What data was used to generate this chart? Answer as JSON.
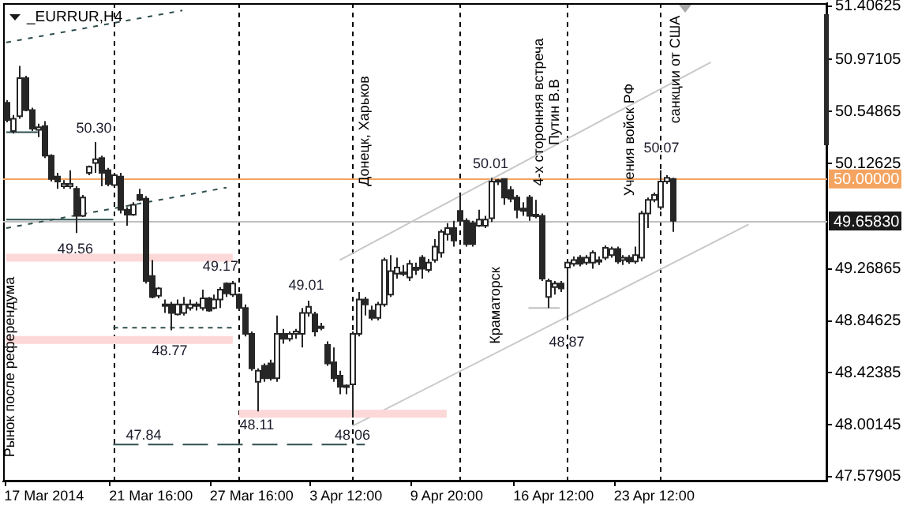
{
  "chart_data": {
    "type": "candlestick",
    "title": "_EURRUR,H4",
    "color": "#262626",
    "categories": [
      null,
      null,
      null,
      null,
      null,
      null,
      "17 Mar 2014",
      null,
      null,
      null,
      null,
      null,
      null,
      null,
      null,
      null,
      null,
      null,
      null,
      null,
      null,
      null,
      null,
      "21 Mar 16:00",
      null,
      null,
      null,
      null,
      null,
      null,
      null,
      null,
      null,
      null,
      null,
      null,
      null,
      null,
      null,
      "27 Mar 16:00",
      null,
      null,
      null,
      null,
      null,
      null,
      null,
      null,
      null,
      null,
      null,
      null,
      null,
      null,
      "3 Apr 12:00",
      null,
      null,
      null,
      null,
      null,
      null,
      null,
      null,
      null,
      null,
      null,
      null,
      null,
      null,
      null,
      "9 Apr 20:00",
      null,
      null,
      null,
      null,
      null,
      null,
      null,
      null,
      null,
      null,
      null,
      null,
      null,
      null,
      null,
      null,
      "16 Apr 12:00",
      null,
      null,
      null,
      null,
      null,
      null,
      null,
      null,
      null,
      null,
      null,
      null,
      null,
      null,
      null,
      "23 Apr 12:00",
      null,
      null,
      null,
      null,
      null,
      null,
      null,
      null,
      null,
      null,
      null,
      null,
      null,
      null,
      null,
      null,
      null,
      null,
      null,
      null,
      null,
      null,
      null,
      null,
      null,
      null,
      null
    ],
    "ohlc": [
      [
        50.62,
        50.64,
        50.46,
        50.48
      ],
      [
        50.39,
        50.52,
        50.37,
        50.49
      ],
      [
        50.51,
        50.92,
        50.49,
        50.82
      ],
      [
        50.82,
        50.84,
        50.55,
        50.56
      ],
      [
        50.56,
        50.58,
        50.39,
        50.41
      ],
      [
        50.4,
        50.45,
        50.34,
        50.42
      ],
      [
        50.43,
        50.47,
        50.17,
        50.19
      ],
      [
        50.19,
        50.2,
        49.98,
        50.0
      ],
      [
        50.02,
        50.05,
        49.92,
        49.98
      ],
      [
        49.94,
        49.99,
        49.92,
        49.96
      ],
      [
        49.94,
        50.07,
        49.92,
        49.96
      ],
      [
        49.92,
        49.94,
        49.56,
        49.7
      ],
      [
        49.7,
        49.87,
        49.69,
        49.85
      ],
      [
        50.05,
        50.11,
        50.03,
        50.1
      ],
      [
        50.13,
        50.3,
        50.05,
        50.16
      ],
      [
        50.17,
        50.19,
        49.94,
        50.05
      ],
      [
        50.07,
        50.09,
        49.94,
        49.96
      ],
      [
        49.95,
        50.05,
        49.94,
        50.03
      ],
      [
        50.02,
        50.05,
        49.72,
        49.75
      ],
      [
        49.75,
        49.77,
        49.62,
        49.71
      ],
      [
        49.71,
        49.81,
        49.7,
        49.79
      ],
      [
        49.87,
        49.92,
        49.82,
        49.83
      ],
      [
        49.84,
        49.86,
        49.15,
        49.17
      ],
      [
        49.21,
        49.34,
        49.03,
        49.04
      ],
      [
        49.05,
        49.12,
        49.03,
        49.11
      ],
      [
        48.98,
        49.02,
        48.91,
        48.97
      ],
      [
        48.98,
        49.0,
        48.77,
        48.91
      ],
      [
        48.9,
        49.02,
        48.89,
        48.98
      ],
      [
        48.91,
        49.04,
        48.89,
        48.98
      ],
      [
        48.95,
        49.02,
        48.93,
        48.98
      ],
      [
        48.98,
        49.0,
        48.93,
        48.97
      ],
      [
        48.95,
        49.1,
        48.93,
        49.03
      ],
      [
        49.03,
        49.04,
        48.92,
        48.93
      ],
      [
        48.95,
        49.06,
        48.94,
        49.02
      ],
      [
        49.02,
        49.12,
        48.95,
        49.1
      ],
      [
        49.15,
        49.16,
        49.04,
        49.07
      ],
      [
        49.06,
        49.17,
        49.04,
        49.15
      ],
      [
        49.06,
        49.07,
        48.93,
        48.95
      ],
      [
        48.95,
        48.98,
        48.72,
        48.74
      ],
      [
        48.74,
        48.76,
        48.44,
        48.46
      ],
      [
        48.35,
        48.46,
        48.11,
        48.44
      ],
      [
        48.48,
        48.5,
        48.35,
        48.38
      ],
      [
        48.5,
        48.53,
        48.36,
        48.38
      ],
      [
        48.38,
        48.89,
        48.35,
        48.74
      ],
      [
        48.74,
        48.78,
        48.66,
        48.7
      ],
      [
        48.7,
        48.76,
        48.68,
        48.74
      ],
      [
        48.74,
        48.78,
        48.7,
        48.76
      ],
      [
        48.74,
        48.95,
        48.63,
        48.91
      ],
      [
        48.91,
        49.01,
        48.88,
        48.96
      ],
      [
        48.9,
        48.92,
        48.72,
        48.76
      ],
      [
        48.8,
        48.83,
        48.77,
        48.79
      ],
      [
        48.65,
        48.68,
        48.48,
        48.5
      ],
      [
        48.51,
        48.63,
        48.35,
        48.38
      ],
      [
        48.4,
        48.44,
        48.25,
        48.31
      ],
      [
        48.32,
        48.33,
        48.25,
        48.31
      ],
      [
        48.33,
        48.76,
        48.06,
        48.74
      ],
      [
        48.74,
        49.08,
        48.72,
        49.02
      ],
      [
        49.02,
        49.04,
        48.89,
        48.98
      ],
      [
        48.93,
        48.97,
        48.85,
        48.87
      ],
      [
        48.87,
        49.0,
        48.85,
        48.98
      ],
      [
        48.98,
        49.36,
        48.96,
        49.34
      ],
      [
        49.06,
        49.38,
        49.04,
        49.25
      ],
      [
        49.23,
        49.36,
        49.19,
        49.28
      ],
      [
        49.24,
        49.3,
        49.21,
        49.24
      ],
      [
        49.2,
        49.34,
        49.17,
        49.31
      ],
      [
        49.28,
        49.32,
        49.22,
        49.26
      ],
      [
        49.36,
        49.38,
        49.19,
        49.27
      ],
      [
        49.26,
        49.35,
        49.24,
        49.32
      ],
      [
        49.34,
        49.51,
        49.32,
        49.45
      ],
      [
        49.4,
        49.59,
        49.36,
        49.57
      ],
      [
        49.55,
        49.64,
        49.5,
        49.6
      ],
      [
        49.6,
        49.66,
        49.45,
        49.5
      ],
      [
        49.74,
        49.87,
        49.64,
        49.66
      ],
      [
        49.66,
        49.68,
        49.45,
        49.47
      ],
      [
        49.64,
        49.66,
        49.45,
        49.47
      ],
      [
        49.62,
        49.75,
        49.61,
        49.67
      ],
      [
        49.62,
        49.7,
        49.6,
        49.67
      ],
      [
        49.68,
        50.01,
        49.65,
        49.98
      ],
      [
        49.99,
        50.0,
        49.95,
        49.98
      ],
      [
        50.0,
        50.0,
        49.79,
        49.85
      ],
      [
        49.91,
        49.94,
        49.81,
        49.84
      ],
      [
        49.85,
        49.87,
        49.68,
        49.75
      ],
      [
        49.76,
        49.81,
        49.7,
        49.74
      ],
      [
        49.85,
        49.87,
        49.66,
        49.7
      ],
      [
        49.71,
        49.83,
        49.68,
        49.7
      ],
      [
        49.7,
        49.72,
        49.17,
        49.19
      ],
      [
        49.04,
        49.19,
        48.95,
        49.17
      ],
      [
        49.12,
        49.17,
        49.06,
        49.15
      ],
      [
        49.15,
        49.17,
        49.08,
        49.11
      ],
      [
        49.28,
        49.34,
        48.87,
        49.32
      ],
      [
        49.31,
        49.37,
        49.29,
        49.34
      ],
      [
        49.36,
        49.38,
        49.29,
        49.31
      ],
      [
        49.32,
        49.38,
        49.3,
        49.36
      ],
      [
        49.32,
        49.42,
        49.27,
        49.4
      ],
      [
        49.34,
        49.37,
        49.3,
        49.33
      ],
      [
        49.36,
        49.46,
        49.34,
        49.44
      ],
      [
        49.38,
        49.45,
        49.36,
        49.43
      ],
      [
        49.43,
        49.45,
        49.31,
        49.33
      ],
      [
        49.34,
        49.38,
        49.3,
        49.36
      ],
      [
        49.36,
        49.38,
        49.31,
        49.33
      ],
      [
        49.33,
        49.45,
        49.31,
        49.38
      ],
      [
        49.36,
        49.74,
        49.33,
        49.72
      ],
      [
        49.72,
        49.85,
        49.6,
        49.83
      ],
      [
        49.83,
        49.89,
        49.81,
        49.87
      ],
      [
        49.77,
        50.07,
        49.75,
        49.98
      ],
      [
        49.98,
        50.03,
        49.96,
        50.01
      ],
      [
        50.0,
        50.01,
        49.57,
        49.66
      ],
      null,
      null,
      null,
      null,
      null,
      null,
      null,
      null,
      null,
      null,
      null,
      null,
      null,
      null,
      null,
      null,
      null,
      null,
      null,
      null,
      null,
      null,
      null,
      null
    ],
    "ylim": [
      47.54,
      51.43
    ],
    "yticks": [
      47.57905,
      48.00145,
      48.42385,
      48.84625,
      49.26865,
      50.12625,
      50.54865,
      50.97105,
      51.40625
    ],
    "series": [
      {
        "type": "line",
        "color": "#2f4f4f",
        "line_style": "dashed",
        "values": [
          51.11,
          null,
          null,
          null,
          null,
          null,
          null,
          null,
          null,
          null,
          null,
          null,
          null,
          null,
          null,
          null,
          null,
          null,
          null,
          null,
          null,
          null,
          null,
          null,
          null,
          null,
          null,
          null,
          51.37,
          null,
          null,
          null,
          null,
          null,
          null,
          null,
          null,
          null,
          null,
          null,
          null,
          null,
          null,
          null,
          null,
          null,
          null,
          null,
          null,
          null,
          null,
          null,
          null,
          null,
          null,
          null,
          null,
          null,
          null,
          null,
          null,
          null,
          null,
          null,
          null,
          null,
          null,
          null,
          null,
          null,
          null,
          null,
          null,
          null,
          null,
          null,
          null,
          null,
          null,
          null,
          null,
          null,
          null,
          null,
          null,
          null,
          null,
          null,
          null,
          null,
          null,
          null,
          null,
          null,
          null,
          null,
          null,
          null,
          null,
          null,
          null,
          null,
          null,
          null,
          null,
          null,
          null,
          null,
          null,
          null,
          null,
          null,
          null,
          null,
          null,
          null,
          null,
          null,
          null,
          null,
          null,
          null,
          null,
          null,
          null,
          null,
          null,
          null,
          null,
          null,
          null
        ]
      },
      {
        "type": "line",
        "color": "#2f4f4f",
        "line_style": "dashed",
        "values": [
          49.6,
          null,
          null,
          null,
          null,
          null,
          null,
          null,
          null,
          null,
          null,
          null,
          null,
          null,
          null,
          null,
          null,
          null,
          null,
          null,
          null,
          null,
          null,
          null,
          null,
          null,
          null,
          null,
          null,
          null,
          null,
          null,
          null,
          null,
          null,
          49.93,
          null,
          null,
          null,
          null,
          null,
          null,
          null,
          null,
          null,
          null,
          null,
          null,
          null,
          null,
          null,
          null,
          null,
          null,
          null,
          null,
          null,
          null,
          null,
          null,
          null,
          null,
          null,
          null,
          null,
          null,
          null,
          null,
          null,
          null,
          null,
          null,
          null,
          null,
          null,
          null,
          null,
          null,
          null,
          null,
          null,
          null,
          null,
          null,
          null,
          null,
          null,
          null,
          null,
          null,
          null,
          null,
          null,
          null,
          null,
          null,
          null,
          null,
          null,
          null,
          null,
          null,
          null,
          null,
          null,
          null,
          null,
          null,
          null,
          null,
          null,
          null,
          null,
          null,
          null,
          null,
          null,
          null,
          null,
          null,
          null,
          null,
          null,
          null,
          null,
          null,
          null,
          null,
          null,
          null,
          null
        ]
      },
      {
        "type": "line",
        "color": "#2f4f4f",
        "line_style": "solid",
        "values": [
          50.38,
          null,
          null,
          null,
          null,
          50.38,
          null,
          null,
          null,
          null,
          null,
          null,
          null,
          null,
          null,
          null,
          null,
          null,
          null,
          null,
          null,
          null,
          null,
          null,
          null,
          null,
          null,
          null,
          null,
          null,
          null,
          null,
          null,
          null,
          null,
          null,
          null,
          null,
          null,
          null,
          null,
          null,
          null,
          null,
          null,
          null,
          null,
          null,
          null,
          null,
          null,
          null,
          null,
          null,
          null,
          null,
          null,
          null,
          null,
          null,
          null,
          null,
          null,
          null,
          null,
          null,
          null,
          null,
          null,
          null,
          null,
          null,
          null,
          null,
          null,
          null,
          null,
          null,
          null,
          null,
          null,
          null,
          null,
          null,
          null,
          null,
          null,
          null,
          null,
          null,
          null,
          null,
          null,
          null,
          null,
          null,
          null,
          null,
          null,
          null,
          null,
          null,
          null,
          null,
          null,
          null,
          null,
          null,
          null,
          null,
          null,
          null,
          null,
          null,
          null,
          null,
          null,
          null,
          null,
          null,
          null,
          null,
          null,
          null,
          null,
          null,
          null,
          null,
          null,
          null,
          null
        ]
      },
      {
        "type": "line",
        "color": "#2f4f4f",
        "line_style": "solid",
        "values": [
          49.67,
          null,
          null,
          null,
          null,
          null,
          null,
          null,
          null,
          null,
          null,
          null,
          null,
          null,
          null,
          null,
          null,
          49.67,
          null,
          null,
          null,
          null,
          null,
          null,
          null,
          null,
          null,
          null,
          null,
          null,
          null,
          null,
          null,
          null,
          null,
          null,
          null,
          null,
          null,
          null,
          null,
          null,
          null,
          null,
          null,
          null,
          null,
          null,
          null,
          null,
          null,
          null,
          null,
          null,
          null,
          null,
          null,
          null,
          null,
          null,
          null,
          null,
          null,
          null,
          null,
          null,
          null,
          null,
          null,
          null,
          null,
          null,
          null,
          null,
          null,
          null,
          null,
          null,
          null,
          null,
          null,
          null,
          null,
          null,
          null,
          null,
          null,
          null,
          null,
          null,
          null,
          null,
          null,
          null,
          null,
          null,
          null,
          null,
          null,
          null,
          null,
          null,
          null,
          null,
          null,
          null,
          null,
          null,
          null,
          null,
          null,
          null,
          null,
          null,
          null,
          null,
          null,
          null,
          null,
          null,
          null,
          null,
          null,
          null,
          null,
          null,
          null,
          null,
          null,
          null,
          null
        ]
      },
      {
        "type": "line",
        "color": "#fdd8d8",
        "line_style": "solid",
        "values": [
          49.36,
          null,
          null,
          null,
          null,
          null,
          null,
          null,
          null,
          null,
          null,
          null,
          null,
          null,
          null,
          null,
          null,
          null,
          null,
          null,
          null,
          null,
          null,
          null,
          null,
          null,
          null,
          null,
          null,
          null,
          null,
          null,
          null,
          null,
          null,
          null,
          49.36,
          null,
          null,
          null,
          null,
          null,
          null,
          null,
          null,
          null,
          null,
          null,
          null,
          null,
          null,
          null,
          null,
          null,
          null,
          null,
          null,
          null,
          null,
          null,
          null,
          null,
          null,
          null,
          null,
          null,
          null,
          null,
          null,
          null,
          null,
          null,
          null,
          null,
          null,
          null,
          null,
          null,
          null,
          null,
          null,
          null,
          null,
          null,
          null,
          null,
          null,
          null,
          null,
          null,
          null,
          null,
          null,
          null,
          null,
          null,
          null,
          null,
          null,
          null,
          null,
          null,
          null,
          null,
          null,
          null,
          null,
          null,
          null,
          null,
          null,
          null,
          null,
          null,
          null,
          null,
          null,
          null,
          null,
          null,
          null,
          null,
          null,
          null,
          null,
          null,
          null,
          null,
          null,
          null,
          null
        ]
      },
      {
        "type": "line",
        "color": "#fdd8d8",
        "line_style": "solid",
        "values": [
          48.69,
          null,
          null,
          null,
          null,
          null,
          null,
          null,
          null,
          null,
          null,
          null,
          null,
          null,
          null,
          null,
          null,
          null,
          null,
          null,
          null,
          null,
          null,
          null,
          null,
          null,
          null,
          null,
          null,
          null,
          null,
          null,
          null,
          null,
          null,
          null,
          48.69,
          null,
          null,
          null,
          null,
          null,
          null,
          null,
          null,
          null,
          null,
          null,
          null,
          null,
          null,
          null,
          null,
          null,
          null,
          null,
          null,
          null,
          null,
          null,
          null,
          null,
          null,
          null,
          null,
          null,
          null,
          null,
          null,
          null,
          null,
          null,
          null,
          null,
          null,
          null,
          null,
          null,
          null,
          null,
          null,
          null,
          null,
          null,
          null,
          null,
          null,
          null,
          null,
          null,
          null,
          null,
          null,
          null,
          null,
          null,
          null,
          null,
          null,
          null,
          null,
          null,
          null,
          null,
          null,
          null,
          null,
          null,
          null,
          null,
          null,
          null,
          null,
          null,
          null,
          null,
          null,
          null,
          null,
          null,
          null,
          null,
          null,
          null,
          null,
          null,
          null,
          null,
          null,
          null,
          null
        ]
      },
      {
        "type": "line",
        "color": "#2f4f4f",
        "line_style": "dashed",
        "values": [
          null,
          null,
          null,
          null,
          null,
          null,
          null,
          null,
          null,
          null,
          null,
          null,
          null,
          null,
          null,
          null,
          null,
          48.79,
          null,
          null,
          null,
          null,
          null,
          null,
          null,
          null,
          null,
          null,
          null,
          null,
          null,
          null,
          null,
          null,
          null,
          null,
          48.79,
          null,
          null,
          null,
          null,
          null,
          null,
          null,
          null,
          null,
          null,
          null,
          null,
          null,
          null,
          null,
          null,
          null,
          null,
          null,
          null,
          null,
          null,
          null,
          null,
          null,
          null,
          null,
          null,
          null,
          null,
          null,
          null,
          null,
          null,
          null,
          null,
          null,
          null,
          null,
          null,
          null,
          null,
          null,
          null,
          null,
          null,
          null,
          null,
          null,
          null,
          null,
          null,
          null,
          null,
          null,
          null,
          null,
          null,
          null,
          null,
          null,
          null,
          null,
          null,
          null,
          null,
          null,
          null,
          null,
          null,
          null,
          null,
          null,
          null,
          null,
          null,
          null,
          null,
          null,
          null,
          null,
          null,
          null,
          null,
          null,
          null,
          null,
          null,
          null,
          null,
          null,
          null,
          null,
          null
        ]
      },
      {
        "type": "line",
        "color": "#2f4f4f",
        "line_style": "dashed",
        "values": [
          null,
          null,
          null,
          null,
          null,
          null,
          null,
          null,
          null,
          null,
          null,
          null,
          null,
          null,
          null,
          null,
          null,
          47.84,
          null,
          null,
          null,
          null,
          null,
          null,
          null,
          null,
          null,
          null,
          null,
          null,
          null,
          null,
          null,
          null,
          null,
          null,
          null,
          null,
          null,
          null,
          null,
          null,
          null,
          null,
          null,
          null,
          null,
          null,
          null,
          null,
          null,
          null,
          null,
          null,
          null,
          null,
          null,
          47.84,
          null,
          null,
          null,
          null,
          null,
          null,
          null,
          null,
          null,
          null,
          null,
          null,
          null,
          null,
          null,
          null,
          null,
          null,
          null,
          null,
          null,
          null,
          null,
          null,
          null,
          null,
          null,
          null,
          null,
          null,
          null,
          null,
          null,
          null,
          null,
          null,
          null,
          null,
          null,
          null,
          null,
          null,
          null,
          null,
          null,
          null,
          null,
          null,
          null,
          null,
          null,
          null,
          null,
          null,
          null,
          null,
          null,
          null,
          null,
          null,
          null,
          null,
          null,
          null,
          null,
          null,
          null,
          null,
          null,
          null,
          null,
          null,
          null
        ]
      },
      {
        "type": "line",
        "color": "#fdd8d8",
        "line_style": "solid",
        "values": [
          null,
          null,
          null,
          null,
          null,
          null,
          null,
          null,
          null,
          null,
          null,
          null,
          null,
          null,
          null,
          null,
          null,
          null,
          null,
          null,
          null,
          null,
          null,
          null,
          null,
          null,
          null,
          null,
          null,
          null,
          null,
          null,
          null,
          null,
          null,
          null,
          null,
          48.09,
          null,
          null,
          null,
          null,
          null,
          null,
          null,
          null,
          null,
          null,
          null,
          null,
          null,
          null,
          null,
          null,
          null,
          null,
          null,
          null,
          null,
          null,
          null,
          null,
          null,
          null,
          null,
          null,
          null,
          null,
          null,
          null,
          48.09,
          null,
          null,
          null,
          null,
          null,
          null,
          null,
          null,
          null,
          null,
          null,
          null,
          null,
          null,
          null,
          null,
          null,
          null,
          null,
          null,
          null,
          null,
          null,
          null,
          null,
          null,
          null,
          null,
          null,
          null,
          null,
          null,
          null,
          null,
          null,
          null,
          null,
          null,
          null,
          null,
          null,
          null,
          null,
          null,
          null,
          null,
          null,
          null,
          null,
          null,
          null,
          null,
          null,
          null,
          null,
          null,
          null,
          null,
          null,
          null
        ]
      },
      {
        "type": "line",
        "color": "#c0c0c0",
        "line_style": "solid",
        "values": [
          null,
          null,
          null,
          null,
          null,
          null,
          null,
          null,
          null,
          null,
          null,
          null,
          null,
          null,
          null,
          null,
          null,
          null,
          null,
          null,
          null,
          null,
          null,
          null,
          null,
          null,
          null,
          null,
          null,
          null,
          null,
          null,
          null,
          null,
          null,
          null,
          null,
          null,
          null,
          null,
          null,
          null,
          null,
          null,
          null,
          null,
          null,
          null,
          null,
          null,
          null,
          null,
          null,
          null,
          null,
          null,
          null,
          null,
          null,
          null,
          null,
          null,
          null,
          null,
          null,
          null,
          null,
          null,
          null,
          null,
          null,
          null,
          null,
          null,
          null,
          null,
          null,
          null,
          null,
          null,
          null,
          null,
          null,
          48.95,
          null,
          null,
          null,
          null,
          48.95,
          null,
          null,
          null,
          null,
          null,
          null,
          null,
          null,
          null,
          null,
          null,
          null,
          null,
          null,
          null,
          null,
          null,
          null,
          null,
          null,
          null,
          null,
          null,
          null,
          null,
          null,
          null,
          null,
          null,
          null,
          null,
          null,
          null,
          null,
          null,
          null,
          null,
          null,
          null,
          null,
          null,
          null
        ]
      },
      {
        "type": "line",
        "color": "#c8c8c8",
        "line_style": "solid",
        "values": [
          null,
          null,
          null,
          null,
          null,
          null,
          null,
          null,
          null,
          null,
          null,
          null,
          null,
          null,
          null,
          null,
          null,
          null,
          null,
          null,
          null,
          null,
          null,
          null,
          null,
          null,
          null,
          null,
          null,
          null,
          null,
          null,
          null,
          null,
          null,
          null,
          null,
          null,
          null,
          null,
          null,
          null,
          null,
          null,
          null,
          null,
          null,
          null,
          null,
          null,
          null,
          null,
          null,
          49.34,
          null,
          null,
          null,
          null,
          null,
          null,
          null,
          null,
          null,
          null,
          null,
          null,
          null,
          null,
          null,
          null,
          null,
          null,
          null,
          null,
          null,
          null,
          null,
          null,
          null,
          null,
          null,
          null,
          null,
          null,
          null,
          null,
          null,
          null,
          null,
          null,
          null,
          null,
          null,
          null,
          null,
          null,
          null,
          null,
          null,
          null,
          null,
          null,
          null,
          null,
          null,
          null,
          null,
          null,
          null,
          null,
          null,
          null,
          50.95,
          null,
          null,
          null,
          null,
          null,
          null,
          null,
          null,
          null,
          null,
          null,
          null,
          null,
          null,
          null,
          null,
          null,
          null
        ]
      },
      {
        "type": "line",
        "color": "#c8c8c8",
        "line_style": "solid",
        "values": [
          null,
          null,
          null,
          null,
          null,
          null,
          null,
          null,
          null,
          null,
          null,
          null,
          null,
          null,
          null,
          null,
          null,
          null,
          null,
          null,
          null,
          null,
          null,
          null,
          null,
          null,
          null,
          null,
          null,
          null,
          null,
          null,
          null,
          null,
          null,
          null,
          null,
          null,
          null,
          null,
          null,
          null,
          null,
          null,
          null,
          null,
          null,
          null,
          null,
          null,
          null,
          null,
          null,
          null,
          null,
          47.99,
          null,
          null,
          null,
          null,
          null,
          null,
          null,
          null,
          null,
          null,
          null,
          null,
          null,
          null,
          null,
          null,
          null,
          null,
          null,
          null,
          null,
          null,
          null,
          null,
          null,
          null,
          null,
          null,
          null,
          null,
          null,
          null,
          null,
          null,
          null,
          null,
          null,
          null,
          null,
          null,
          null,
          null,
          null,
          null,
          null,
          null,
          null,
          null,
          null,
          null,
          null,
          null,
          null,
          null,
          null,
          null,
          null,
          null,
          null,
          null,
          null,
          null,
          49.63,
          null,
          null,
          null,
          null,
          null,
          null,
          null,
          null,
          null,
          null,
          null,
          null
        ]
      }
    ],
    "ref_lines": [
      {
        "axis": "y",
        "value": 50.0,
        "label": "50.00000",
        "color": "#f4a460",
        "line_style": "solid"
      },
      {
        "axis": "y",
        "value": 49.6583,
        "label": "49.65830",
        "color": "#c0c0c0",
        "line_style": "solid"
      }
    ],
    "annotations": [
      {
        "text": "50.30",
        "y": 50.3
      },
      "49.56",
      {
        "text": "49.17",
        "y": 49.17
      },
      "48.77",
      "47.84",
      "48.11",
      "49.01",
      {
        "text": "48.06",
        "y": 48.06
      },
      {
        "text": "50.01",
        "y": 50.01
      },
      "48.87",
      "50.07",
      "Краматорск",
      "Учения войск РФ",
      "Рынок после референдума",
      "Донецк, Харьков",
      "4-х сторонняя встреча\nПутин В.В",
      "санкции от США"
    ]
  }
}
